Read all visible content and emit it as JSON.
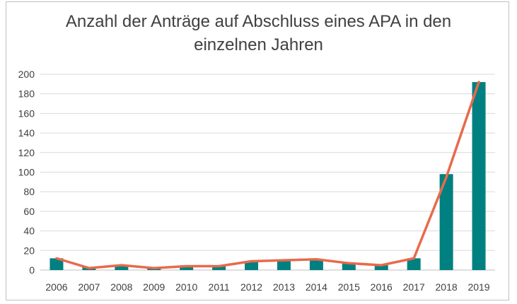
{
  "chart_data": {
    "type": "bar",
    "title_lines": [
      "Anzahl der Anträge auf Abschluss eines APA in den",
      "einzelnen Jahren"
    ],
    "categories": [
      "2006",
      "2007",
      "2008",
      "2009",
      "2010",
      "2011",
      "2012",
      "2013",
      "2014",
      "2015",
      "2016",
      "2017",
      "2018",
      "2019"
    ],
    "series": [
      {
        "type": "bar",
        "color": "#008080",
        "values": [
          12,
          3,
          5,
          2,
          4,
          4,
          9,
          10,
          11,
          7,
          5,
          12,
          98,
          192
        ]
      },
      {
        "type": "line",
        "color": "#e86a4b",
        "values": [
          12,
          2,
          5,
          2,
          4,
          4,
          9,
          10,
          11,
          7,
          5,
          12,
          95,
          192
        ]
      }
    ],
    "ylim": [
      0,
      200
    ],
    "yticks": [
      0,
      20,
      40,
      60,
      80,
      100,
      120,
      140,
      160,
      180,
      200
    ],
    "grid": true,
    "legend": "none"
  }
}
